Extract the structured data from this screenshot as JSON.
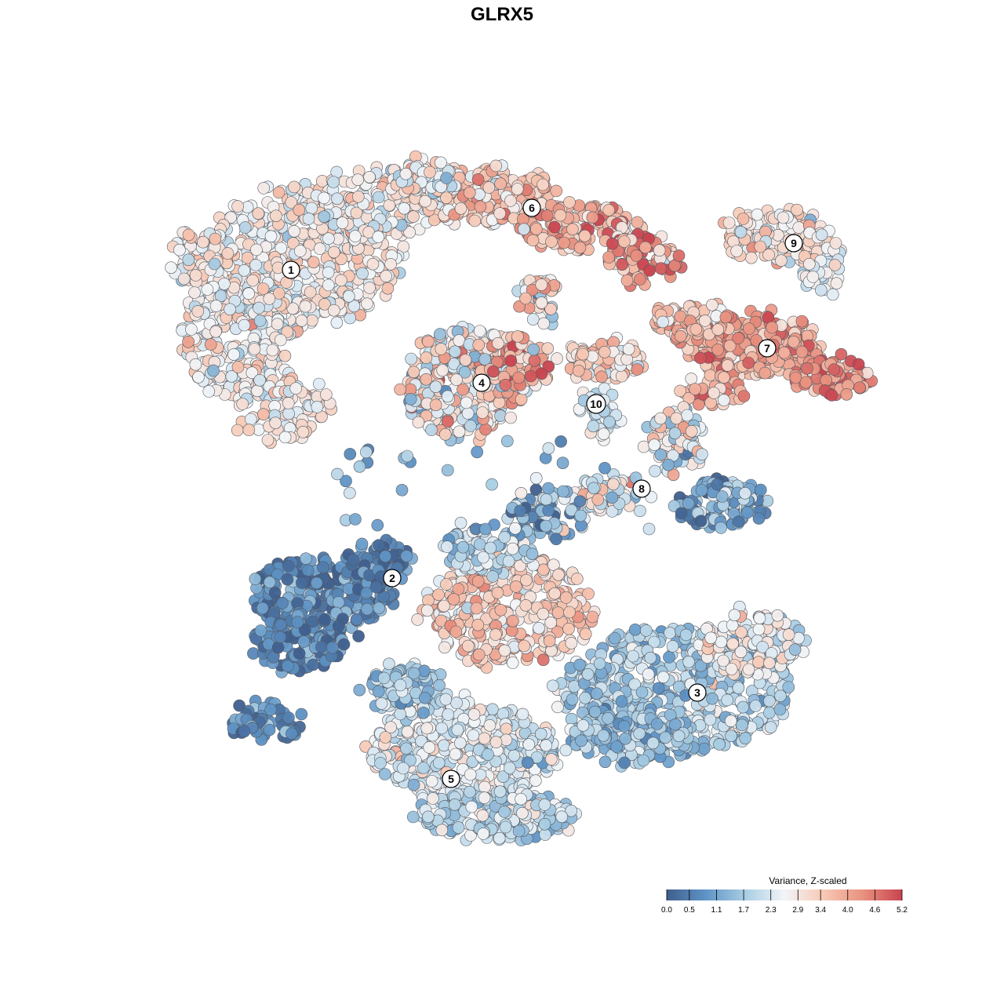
{
  "chart_data": {
    "type": "scatter",
    "title": "GLRX5",
    "xlabel": "",
    "ylabel": "",
    "grid": false,
    "legend": {
      "title": "Variance, Z-scaled",
      "placement": "bottom-right",
      "range": [
        0.0,
        5.2
      ],
      "ticks": [
        "0.0",
        "0.5",
        "1.1",
        "1.7",
        "2.3",
        "2.9",
        "3.4",
        "4.0",
        "4.6",
        "5.2"
      ],
      "colors": [
        "#3f5f8e",
        "#5f94c6",
        "#a9cde3",
        "#f2f5f8",
        "#f7c9b5",
        "#e9917f",
        "#c8434f"
      ]
    },
    "clusters": [
      {
        "label": "1",
        "mean": 2.8,
        "spread": 0.5
      },
      {
        "label": "2",
        "mean": 0.7,
        "spread": 0.5
      },
      {
        "label": "3",
        "mean": 1.8,
        "spread": 0.5
      },
      {
        "label": "4",
        "mean": 2.9,
        "spread": 0.9
      },
      {
        "label": "5",
        "mean": 2.4,
        "spread": 0.5
      },
      {
        "label": "6",
        "mean": 3.4,
        "spread": 0.6
      },
      {
        "label": "7",
        "mean": 4.0,
        "spread": 0.5
      },
      {
        "label": "8",
        "mean": 1.5,
        "spread": 0.8
      },
      {
        "label": "9",
        "mean": 3.0,
        "spread": 0.5
      },
      {
        "label": "10",
        "mean": 2.2,
        "spread": 0.5
      }
    ]
  }
}
